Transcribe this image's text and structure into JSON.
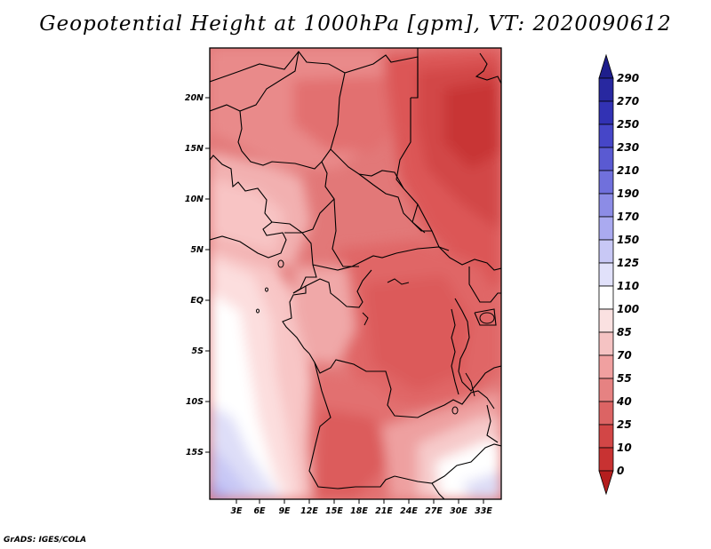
{
  "title": "Geopotential Height at 1000hPa [gpm], VT: 2020090612",
  "credit": "GrADS: IGES/COLA",
  "map": {
    "lon_labels": [
      "3E",
      "6E",
      "9E",
      "12E",
      "15E",
      "18E",
      "21E",
      "24E",
      "27E",
      "30E",
      "33E"
    ],
    "lat_labels": [
      "20N",
      "15N",
      "10N",
      "5N",
      "EQ",
      "5S",
      "10S",
      "15S"
    ]
  },
  "colorbar": {
    "levels": [
      290,
      270,
      250,
      230,
      210,
      190,
      170,
      150,
      125,
      110,
      100,
      85,
      70,
      55,
      40,
      25,
      10,
      0
    ],
    "colors": [
      "#1e1e8c",
      "#2828a0",
      "#3232b4",
      "#4646c8",
      "#5a5ad2",
      "#7070dc",
      "#8c8ce6",
      "#aaaaf0",
      "#c8c8f5",
      "#e1e1fa",
      "#ffffff",
      "#fae1e1",
      "#f5c3c3",
      "#f0a0a0",
      "#e68282",
      "#dc6464",
      "#d24646",
      "#c83232",
      "#b41e1e"
    ]
  }
}
